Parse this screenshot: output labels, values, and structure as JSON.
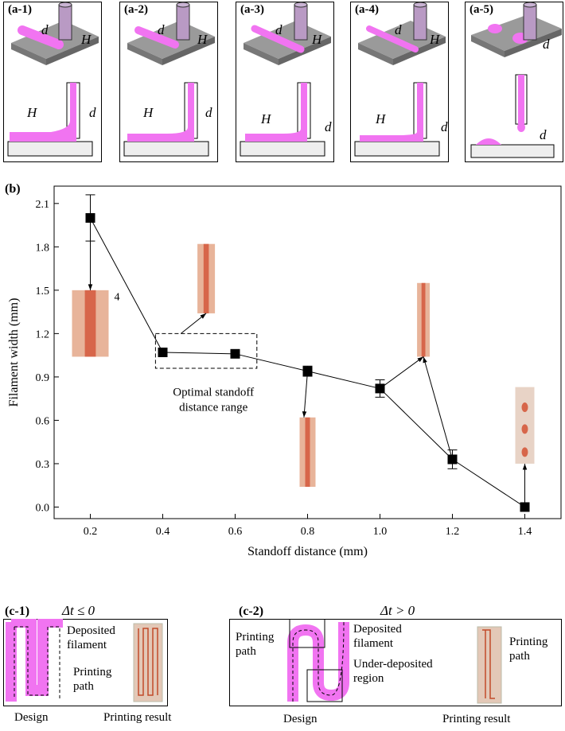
{
  "panel_a": [
    {
      "label": "(a-1)",
      "sym_d": "d",
      "sym_H": "H"
    },
    {
      "label": "(a-2)",
      "sym_d": "d",
      "sym_H": "H"
    },
    {
      "label": "(a-3)",
      "sym_d": "d",
      "sym_H": "H"
    },
    {
      "label": "(a-4)",
      "sym_d": "d",
      "sym_H": "H"
    },
    {
      "label": "(a-5)",
      "sym_d": "d",
      "sym_H": ""
    }
  ],
  "panel_b": {
    "label": "(b)",
    "annotation": "Optimal standoff distance range",
    "inset_label": "4"
  },
  "chart_data": {
    "type": "scatter",
    "xlabel": "Standoff distance (mm)",
    "ylabel": "Filament width (mm)",
    "xlim": [
      0.1,
      1.5
    ],
    "ylim": [
      -0.08,
      2.22
    ],
    "xticks": [
      "0.2",
      "0.4",
      "0.6",
      "0.8",
      "1.0",
      "1.2",
      "1.4"
    ],
    "yticks": [
      "0.0",
      "0.3",
      "0.6",
      "0.9",
      "1.2",
      "1.5",
      "1.8",
      "2.1"
    ],
    "series": [
      {
        "name": "Filament width",
        "x": [
          0.2,
          0.4,
          0.6,
          0.8,
          1.0,
          1.2,
          1.4
        ],
        "y": [
          2.0,
          1.07,
          1.06,
          0.94,
          0.82,
          0.33,
          0.0
        ],
        "err": [
          0.16,
          0,
          0.025,
          0.035,
          0.06,
          0.065,
          0
        ]
      }
    ],
    "connections": [
      [
        0,
        1
      ],
      [
        1,
        2
      ],
      [
        2,
        3
      ],
      [
        3,
        4
      ],
      [
        4,
        5
      ],
      [
        5,
        6
      ]
    ]
  },
  "panel_c1": {
    "label": "(c-1)",
    "condition": "Δt ≤ 0",
    "deposited": "Deposited filament",
    "printing_path": "Printing path",
    "design": "Design",
    "result": "Printing result"
  },
  "panel_c2": {
    "label": "(c-2)",
    "condition": "Δt > 0",
    "printing_path": "Printing path",
    "deposited": "Deposited filament",
    "under": "Under-deposited region",
    "result_path": "Printing path",
    "design": "Design",
    "result": "Printing result"
  }
}
